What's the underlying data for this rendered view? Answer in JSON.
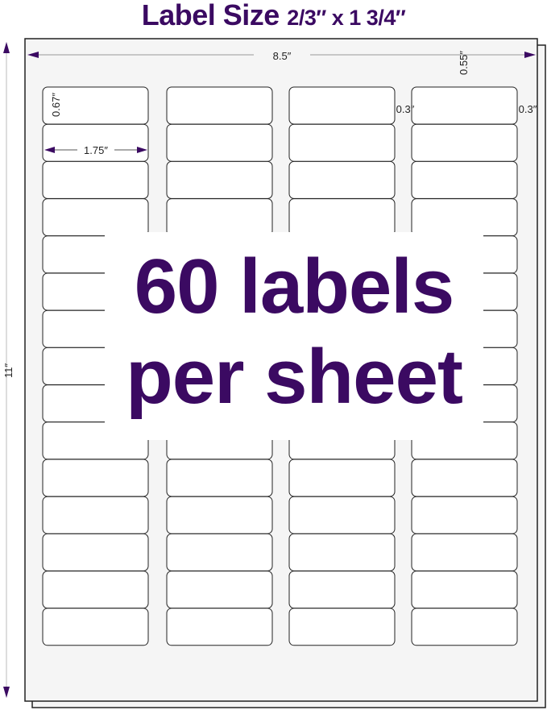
{
  "title": {
    "main": "Label Size",
    "size": "2/3″ x 1 3/4″"
  },
  "dimensions": {
    "sheet_width": "8.5″",
    "sheet_height": "11″",
    "top_margin": "0.55″",
    "label_height": "0.67″",
    "label_width": "1.75″",
    "column_gap": "0.3″",
    "side_margin": "0.3″"
  },
  "grid": {
    "columns": 4,
    "rows": 15
  },
  "headline": {
    "line1": "60 labels",
    "line2": "per sheet"
  },
  "colors": {
    "accent": "#3b0a62",
    "sheet": "#f5f5f5",
    "label": "#ffffff"
  }
}
